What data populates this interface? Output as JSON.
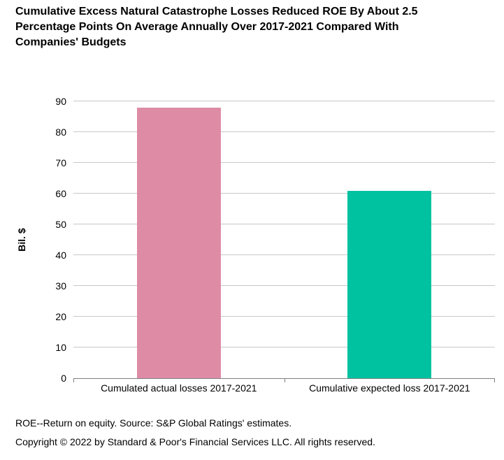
{
  "title_lines": [
    "Cumulative Excess Natural Catastrophe Losses Reduced ROE By About 2.5",
    "Percentage Points On Average Annually Over 2017-2021 Compared With",
    "Companies' Budgets"
  ],
  "chart_data": {
    "type": "bar",
    "title": "Cumulative Excess Natural Catastrophe Losses Reduced ROE By About 2.5 Percentage Points On Average Annually Over 2017-2021 Compared With Companies' Budgets",
    "categories": [
      "Cumulated actual losses 2017-2021",
      "Cumulative expected loss 2017-2021"
    ],
    "values": [
      88,
      61
    ],
    "xlabel": "",
    "ylabel": "Bil. $",
    "ylim": [
      0,
      90
    ],
    "yticks": [
      0,
      10,
      20,
      30,
      40,
      50,
      60,
      70,
      80,
      90
    ],
    "grid": true,
    "legend": "none",
    "bar_colors": [
      "#de8ca6",
      "#00c2a1"
    ]
  },
  "colors": {
    "bar_actual_losses": "#de8ca6",
    "bar_expected_loss": "#00c2a1",
    "gridline": "#c8c8c8",
    "axis_line": "#808080",
    "text": "#000000"
  },
  "footnote": "ROE--Return on equity. Source: S&P Global Ratings' estimates.",
  "copyright": "Copyright © 2022 by Standard & Poor's Financial Services LLC. All rights reserved."
}
